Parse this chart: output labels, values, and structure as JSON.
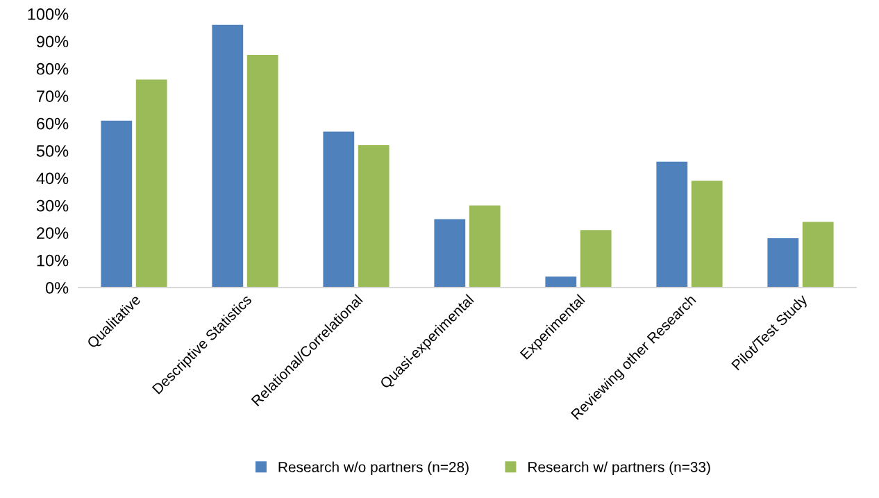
{
  "chart_data": {
    "type": "bar",
    "categories": [
      "Qualitative",
      "Descriptive Statistics",
      "Relational/Correlational",
      "Quasi-experimental",
      "Experimental",
      "Reviewing other Research",
      "Pilot/Test Study"
    ],
    "series": [
      {
        "name": "Research w/o partners (n=28)",
        "color": "#4f81bd",
        "values": [
          61,
          96,
          57,
          25,
          4,
          46,
          18
        ]
      },
      {
        "name": "Research w/ partners (n=33)",
        "color": "#9bbb59",
        "values": [
          76,
          85,
          52,
          30,
          21,
          39,
          24
        ]
      }
    ],
    "ylim": [
      0,
      100
    ],
    "yticks": [
      {
        "value": 0,
        "label": "0%"
      },
      {
        "value": 10,
        "label": "10%"
      },
      {
        "value": 20,
        "label": "20%"
      },
      {
        "value": 30,
        "label": "30%"
      },
      {
        "value": 40,
        "label": "40%"
      },
      {
        "value": 50,
        "label": "50%"
      },
      {
        "value": 60,
        "label": "60%"
      },
      {
        "value": 70,
        "label": "70%"
      },
      {
        "value": 80,
        "label": "80%"
      },
      {
        "value": 90,
        "label": "90%"
      },
      {
        "value": 100,
        "label": "100%"
      }
    ],
    "grid": false,
    "legend": "bottom"
  }
}
